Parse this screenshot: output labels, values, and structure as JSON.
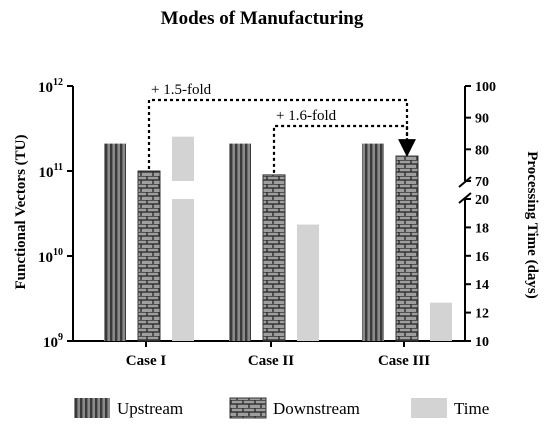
{
  "chart_data": {
    "type": "bar",
    "title": "Modes of Manufacturing",
    "categories": [
      "Case I",
      "Case II",
      "Case III"
    ],
    "left_axis": {
      "label": "Functional Vectors (TU)",
      "scale": "log",
      "range": [
        1000000000,
        1000000000000
      ],
      "ticks": [
        {
          "base": "10",
          "exp": "9"
        },
        {
          "base": "10",
          "exp": "10"
        },
        {
          "base": "10",
          "exp": "11"
        },
        {
          "base": "10",
          "exp": "12"
        }
      ]
    },
    "right_axis": {
      "label": "Processing Time (days)",
      "broken": true,
      "lower_range": [
        10,
        20
      ],
      "upper_range": [
        70,
        100
      ],
      "ticks_lower": [
        "10",
        "12",
        "14",
        "16",
        "18",
        "20"
      ],
      "ticks_upper": [
        "70",
        "80",
        "90",
        "100"
      ]
    },
    "series": [
      {
        "name": "Upstream",
        "axis": "left",
        "pattern": "vertical-stripes",
        "values": [
          210000000000,
          210000000000,
          210000000000
        ]
      },
      {
        "name": "Downstream",
        "axis": "left",
        "pattern": "brick",
        "values": [
          100000000000,
          90000000000,
          150000000000
        ]
      },
      {
        "name": "Time",
        "axis": "right",
        "pattern": "solid-light-gray",
        "values": [
          84,
          18.2,
          12.7
        ]
      }
    ],
    "annotations": [
      {
        "text": "+ 1.5-fold",
        "from": "Case I",
        "to": "Case III",
        "series": "Downstream"
      },
      {
        "text": "+ 1.6-fold",
        "from": "Case II",
        "to": "Case III",
        "series": "Downstream"
      }
    ],
    "legend": {
      "position": "bottom"
    },
    "colors": {
      "time": "#d3d3d3",
      "pattern_dark": "#333333",
      "pattern_light": "#9e9e9e"
    }
  }
}
